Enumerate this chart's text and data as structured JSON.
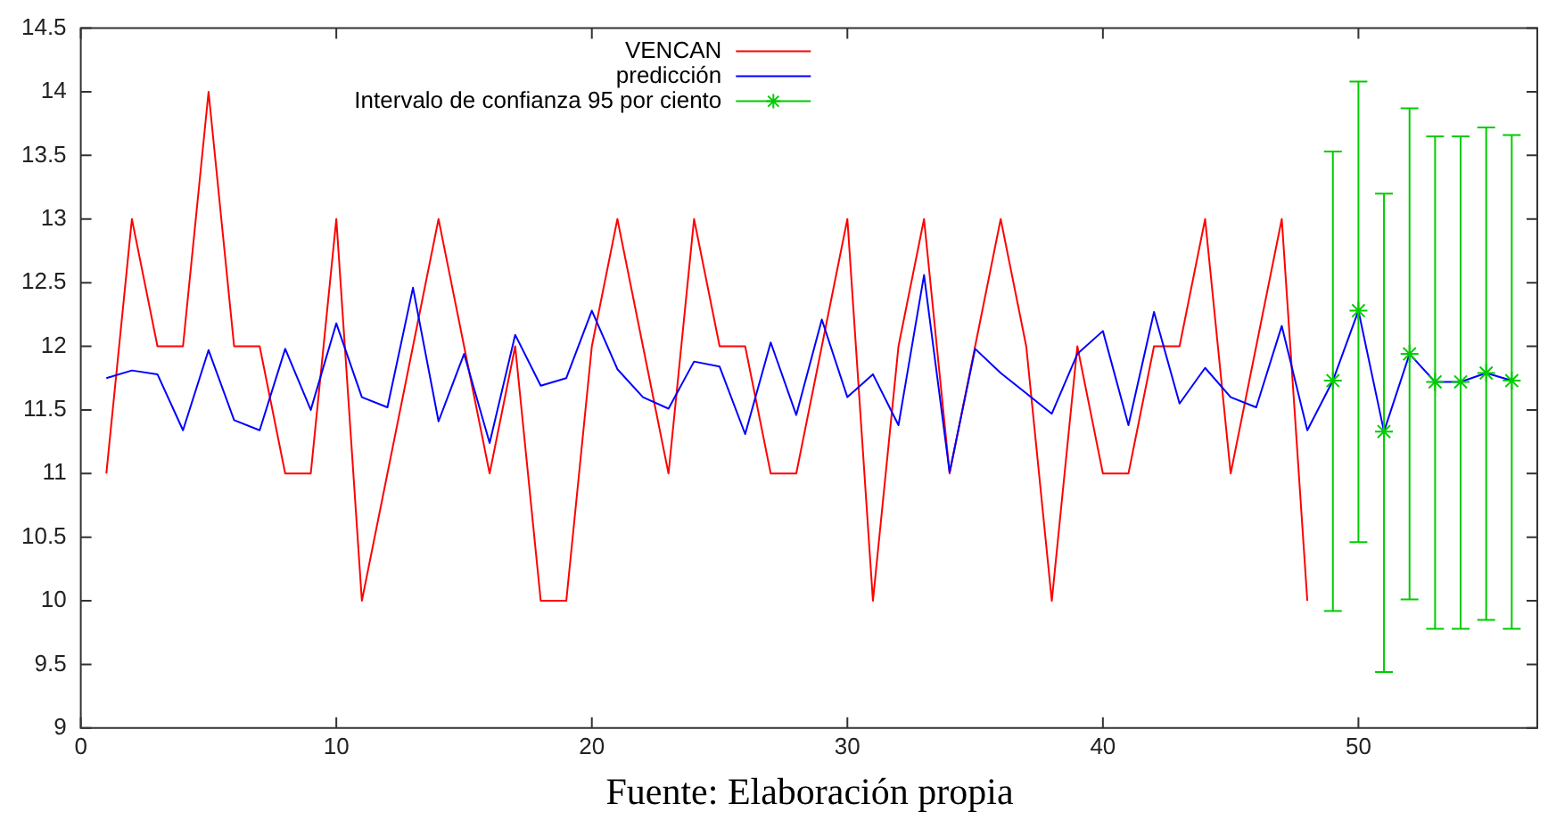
{
  "chart_data": {
    "type": "line",
    "x": [
      1,
      2,
      3,
      4,
      5,
      6,
      7,
      8,
      9,
      10,
      11,
      12,
      13,
      14,
      15,
      16,
      17,
      18,
      19,
      20,
      21,
      22,
      23,
      24,
      25,
      26,
      27,
      28,
      29,
      30,
      31,
      32,
      33,
      34,
      35,
      36,
      37,
      38,
      39,
      40,
      41,
      42,
      43,
      44,
      45,
      46,
      47,
      48,
      49,
      50,
      51,
      52,
      53,
      54,
      55,
      56
    ],
    "series": [
      {
        "name": "VENCAN",
        "color": "#ff0000",
        "x": [
          1,
          2,
          3,
          4,
          5,
          6,
          7,
          8,
          9,
          10,
          11,
          12,
          13,
          14,
          15,
          16,
          17,
          18,
          19,
          20,
          21,
          22,
          23,
          24,
          25,
          26,
          27,
          28,
          29,
          30,
          31,
          32,
          33,
          34,
          35,
          36,
          37,
          38,
          39,
          40,
          41,
          42,
          43,
          44,
          45,
          46,
          47,
          48
        ],
        "values": [
          11,
          13,
          12,
          12,
          14,
          12,
          12,
          11,
          11,
          13,
          10,
          11,
          12,
          13,
          12,
          11,
          12,
          10,
          10,
          12,
          13,
          12,
          11,
          13,
          12,
          12,
          11,
          11,
          12,
          13,
          10,
          12,
          13,
          11,
          12,
          13,
          12,
          10,
          12,
          11,
          11,
          12,
          12,
          13,
          11,
          12,
          13,
          10
        ]
      },
      {
        "name": "predicción",
        "color": "#0000ff",
        "values": [
          11.75,
          11.81,
          11.78,
          11.34,
          11.97,
          11.42,
          11.34,
          11.98,
          11.5,
          12.18,
          11.6,
          11.52,
          12.46,
          11.41,
          11.94,
          11.24,
          12.09,
          11.69,
          11.75,
          12.28,
          11.82,
          11.6,
          11.51,
          11.88,
          11.84,
          11.31,
          12.03,
          11.46,
          12.21,
          11.6,
          11.78,
          11.38,
          12.56,
          11.01,
          11.98,
          11.79,
          11.63,
          11.47,
          11.94,
          12.12,
          11.38,
          12.27,
          11.55,
          11.83,
          11.6,
          11.52,
          12.16,
          11.34,
          11.73,
          12.28,
          11.33,
          11.94,
          11.72,
          11.72,
          11.79,
          11.73
        ]
      },
      {
        "name": "Intervalo de confianza 95 por ciento",
        "color": "#00cc00",
        "type": "scatter",
        "marker": "cross",
        "x": [
          49,
          50,
          51,
          52,
          53,
          54,
          55,
          56
        ],
        "values": [
          11.73,
          12.28,
          11.33,
          11.94,
          11.72,
          11.72,
          11.79,
          11.73
        ],
        "errors": [
          [
            9.92,
            13.53
          ],
          [
            10.46,
            14.08
          ],
          [
            9.44,
            13.2
          ],
          [
            10.01,
            13.87
          ],
          [
            9.78,
            13.65
          ],
          [
            9.78,
            13.65
          ],
          [
            9.85,
            13.72
          ],
          [
            9.78,
            13.66
          ]
        ]
      }
    ],
    "xlim": [
      0,
      57
    ],
    "xticks": [
      0,
      10,
      20,
      30,
      40,
      50
    ],
    "ylim": [
      9,
      14.5
    ],
    "yticks": [
      9,
      9.5,
      10,
      10.5,
      11,
      11.5,
      12,
      12.5,
      13,
      13.5,
      14,
      14.5
    ],
    "grid": false,
    "legend": "top",
    "marker": "none",
    "line_style": "solid",
    "annotations": [
      "Fuente: Elaboración propia"
    ]
  }
}
